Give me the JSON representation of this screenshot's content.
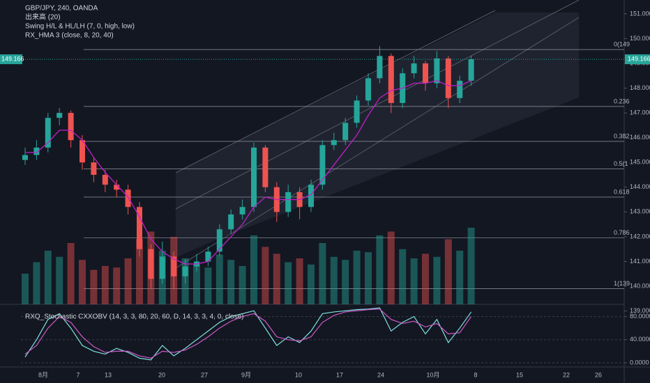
{
  "chart_data": [
    {
      "type": "candlestick",
      "legend_lines": [
        "GBP/JPY, 240, OANDA",
        "出来高 (20)",
        "Swing H/L & HL/LH (7, 0, high, low)",
        "RX_HMA 3 (close, 8, 20, 40)"
      ],
      "open": [
        145.1,
        145.3,
        145.6,
        146.8,
        147.0,
        145.9,
        145.0,
        144.5,
        144.1,
        143.9,
        143.2,
        141.5,
        140.3,
        141.2,
        140.4,
        140.8,
        141.0,
        141.4,
        142.3,
        142.9,
        143.2,
        145.6,
        144.0,
        143.0,
        143.8,
        143.2,
        144.1,
        145.7,
        145.9,
        146.6,
        147.5,
        148.4,
        149.3,
        147.4,
        148.6,
        149.0,
        148.2,
        149.2,
        147.6,
        148.3
      ],
      "high": [
        145.6,
        145.9,
        147.0,
        147.2,
        147.1,
        146.1,
        145.2,
        144.7,
        144.3,
        144.1,
        143.4,
        141.7,
        141.8,
        141.4,
        141.1,
        141.3,
        141.6,
        142.5,
        143.1,
        143.5,
        145.8,
        145.7,
        144.2,
        144.1,
        144.0,
        144.3,
        145.9,
        146.2,
        146.8,
        147.7,
        148.6,
        149.7,
        149.4,
        148.8,
        149.3,
        149.1,
        149.5,
        149.3,
        148.5,
        149.3
      ],
      "low": [
        144.9,
        145.1,
        145.4,
        146.5,
        145.6,
        144.7,
        144.2,
        143.8,
        143.6,
        142.9,
        141.2,
        139.9,
        140.1,
        139.9,
        140.1,
        140.6,
        140.8,
        141.2,
        142.1,
        142.7,
        143.0,
        143.8,
        142.6,
        142.8,
        142.7,
        143.0,
        143.9,
        145.5,
        145.7,
        146.4,
        147.3,
        148.2,
        147.0,
        147.2,
        148.4,
        147.9,
        148.0,
        147.2,
        147.4,
        148.1
      ],
      "close": [
        145.3,
        145.6,
        146.8,
        147.0,
        145.9,
        145.0,
        144.5,
        144.1,
        143.9,
        143.2,
        141.5,
        140.3,
        141.2,
        140.4,
        140.8,
        141.0,
        141.4,
        142.3,
        142.9,
        143.2,
        145.6,
        144.0,
        143.0,
        143.8,
        143.2,
        144.1,
        145.7,
        145.9,
        146.6,
        147.5,
        148.4,
        149.3,
        147.4,
        148.6,
        149.0,
        148.2,
        149.2,
        147.6,
        148.3,
        149.17
      ],
      "volume": [
        40,
        55,
        70,
        62,
        80,
        58,
        45,
        50,
        48,
        60,
        85,
        95,
        70,
        88,
        60,
        52,
        48,
        65,
        58,
        50,
        90,
        75,
        66,
        55,
        60,
        52,
        80,
        62,
        58,
        70,
        68,
        90,
        95,
        72,
        60,
        66,
        62,
        85,
        70,
        100
      ],
      "hma": {
        "name": "RX_HMA 3",
        "color": "#c020c8",
        "values": [
          145.4,
          145.4,
          145.8,
          146.3,
          146.3,
          145.9,
          145.2,
          144.6,
          144.1,
          143.6,
          142.8,
          141.9,
          141.4,
          141.1,
          140.9,
          140.9,
          141.0,
          141.5,
          142.0,
          142.5,
          143.2,
          143.6,
          143.5,
          143.5,
          143.5,
          143.7,
          144.3,
          144.9,
          145.5,
          146.1,
          146.9,
          147.6,
          147.9,
          148.0,
          148.2,
          148.2,
          148.3,
          148.1,
          148.1,
          148.3
        ]
      },
      "fib_levels": [
        {
          "value": 149.56,
          "label": "0(149"
        },
        {
          "value": 147.26,
          "label": "0.236"
        },
        {
          "value": 145.85,
          "label": "0.382"
        },
        {
          "value": 144.74,
          "label": "0.5(1"
        },
        {
          "value": 143.6,
          "label": "0.618"
        },
        {
          "value": 141.95,
          "label": "0.786"
        },
        {
          "value": 139.9,
          "label": "1(139"
        }
      ],
      "last_price": 149.166,
      "ylim": [
        139.27,
        151.56
      ],
      "yticks": [
        {
          "value": 139,
          "label": "139.000"
        },
        {
          "value": 140,
          "label": "140.000"
        },
        {
          "value": 141,
          "label": "141.000"
        },
        {
          "value": 142,
          "label": "142.000"
        },
        {
          "value": 143,
          "label": "143.000"
        },
        {
          "value": 144,
          "label": "144.000"
        },
        {
          "value": 145,
          "label": "145.000"
        },
        {
          "value": 146,
          "label": "146.000"
        },
        {
          "value": 147,
          "label": "147.000"
        },
        {
          "value": 148,
          "label": "148.000"
        },
        {
          "value": 149,
          "label": "149.000"
        },
        {
          "value": 150,
          "label": "150.000"
        },
        {
          "value": 151,
          "label": "151.000"
        }
      ],
      "up_color": "#26a69a",
      "down_color": "#ef5350",
      "xticks": [
        "8月",
        "7",
        "13",
        "20",
        "27",
        "9月",
        "10",
        "17",
        "24",
        "10月",
        "8",
        "15",
        "22",
        "26"
      ]
    },
    {
      "type": "line",
      "title": "RXQ_Stochastic CXXOBV (14, 3, 3, 80, 20, 60, D, 14, 3, 3, 4, 0, close)",
      "series": [
        {
          "name": "K",
          "color": "#7fe3e0",
          "values": [
            10,
            40,
            75,
            85,
            60,
            30,
            20,
            15,
            25,
            18,
            8,
            5,
            30,
            12,
            25,
            40,
            55,
            70,
            80,
            85,
            90,
            60,
            30,
            45,
            35,
            55,
            85,
            88,
            90,
            92,
            93,
            95,
            55,
            70,
            80,
            50,
            75,
            35,
            60,
            88
          ]
        },
        {
          "name": "D",
          "color": "#d05ac8",
          "values": [
            15,
            30,
            60,
            80,
            70,
            45,
            28,
            18,
            20,
            20,
            12,
            8,
            20,
            18,
            22,
            32,
            45,
            60,
            72,
            80,
            85,
            72,
            45,
            40,
            38,
            45,
            70,
            82,
            88,
            90,
            92,
            93,
            75,
            68,
            72,
            62,
            68,
            50,
            52,
            80
          ]
        }
      ],
      "ylim": [
        0,
        100
      ],
      "yticks": [
        {
          "value": 0,
          "label": "0.0000"
        },
        {
          "value": 40,
          "label": "40.0000"
        },
        {
          "value": 80,
          "label": "80.0000"
        }
      ]
    }
  ]
}
